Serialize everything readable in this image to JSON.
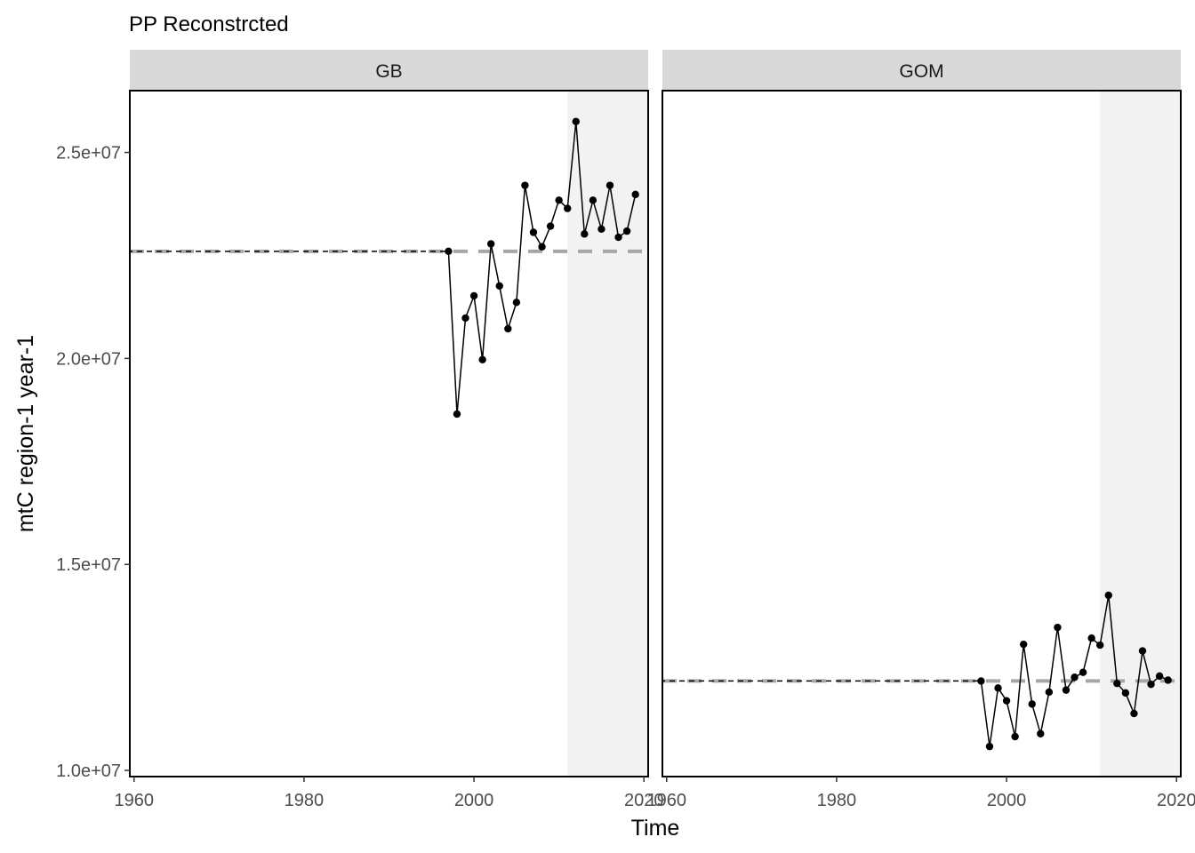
{
  "chart_data": {
    "type": "line",
    "title": "PP Reconstrcted",
    "xlabel": "Time",
    "ylabel": "mtC region-1 year-1",
    "xlim": [
      1959.5,
      2020.5
    ],
    "ylim": [
      9850000,
      26500000
    ],
    "x_ticks": [
      1960,
      1980,
      2000,
      2020
    ],
    "x_tick_labels": [
      "1960",
      "1980",
      "2000",
      "2020"
    ],
    "y_ticks": [
      10000000,
      15000000,
      20000000,
      25000000
    ],
    "y_tick_labels": [
      "1.0e+07",
      "1.5e+07",
      "2.0e+07",
      "2.5e+07"
    ],
    "shaded_region": [
      2011,
      2020.5
    ],
    "grid": false,
    "panels": [
      {
        "name": "GB",
        "mean": 22600000,
        "mean_start": 1959.5,
        "series": {
          "x": [
            1997,
            1998,
            1999,
            2000,
            2001,
            2002,
            2003,
            2004,
            2005,
            2006,
            2007,
            2008,
            2009,
            2010,
            2011,
            2012,
            2013,
            2014,
            2015,
            2016,
            2017,
            2018,
            2019
          ],
          "values": [
            22600000,
            18650000,
            20980000,
            21520000,
            19970000,
            22780000,
            21760000,
            20720000,
            21360000,
            24200000,
            23060000,
            22710000,
            23210000,
            23840000,
            23640000,
            25750000,
            23020000,
            23840000,
            23140000,
            24200000,
            22940000,
            23090000,
            23980000
          ]
        }
      },
      {
        "name": "GOM",
        "mean": 12170000,
        "mean_start": 1959.5,
        "series": {
          "x": [
            1997,
            1998,
            1999,
            2000,
            2001,
            2002,
            2003,
            2004,
            2005,
            2006,
            2007,
            2008,
            2009,
            2010,
            2011,
            2012,
            2013,
            2014,
            2015,
            2016,
            2017,
            2018,
            2019
          ],
          "values": [
            12170000,
            10580000,
            12000000,
            11690000,
            10820000,
            13060000,
            11610000,
            10890000,
            11900000,
            13470000,
            11950000,
            12260000,
            12380000,
            13210000,
            13040000,
            14250000,
            12110000,
            11880000,
            11380000,
            12900000,
            12090000,
            12290000,
            12190000
          ]
        }
      }
    ],
    "colors": {
      "line": "#000000",
      "mean_line": "#a6a6a6",
      "mean_line_dark": "#000000",
      "shade": "#f2f2f2",
      "strip": "#d9d9d9"
    }
  }
}
